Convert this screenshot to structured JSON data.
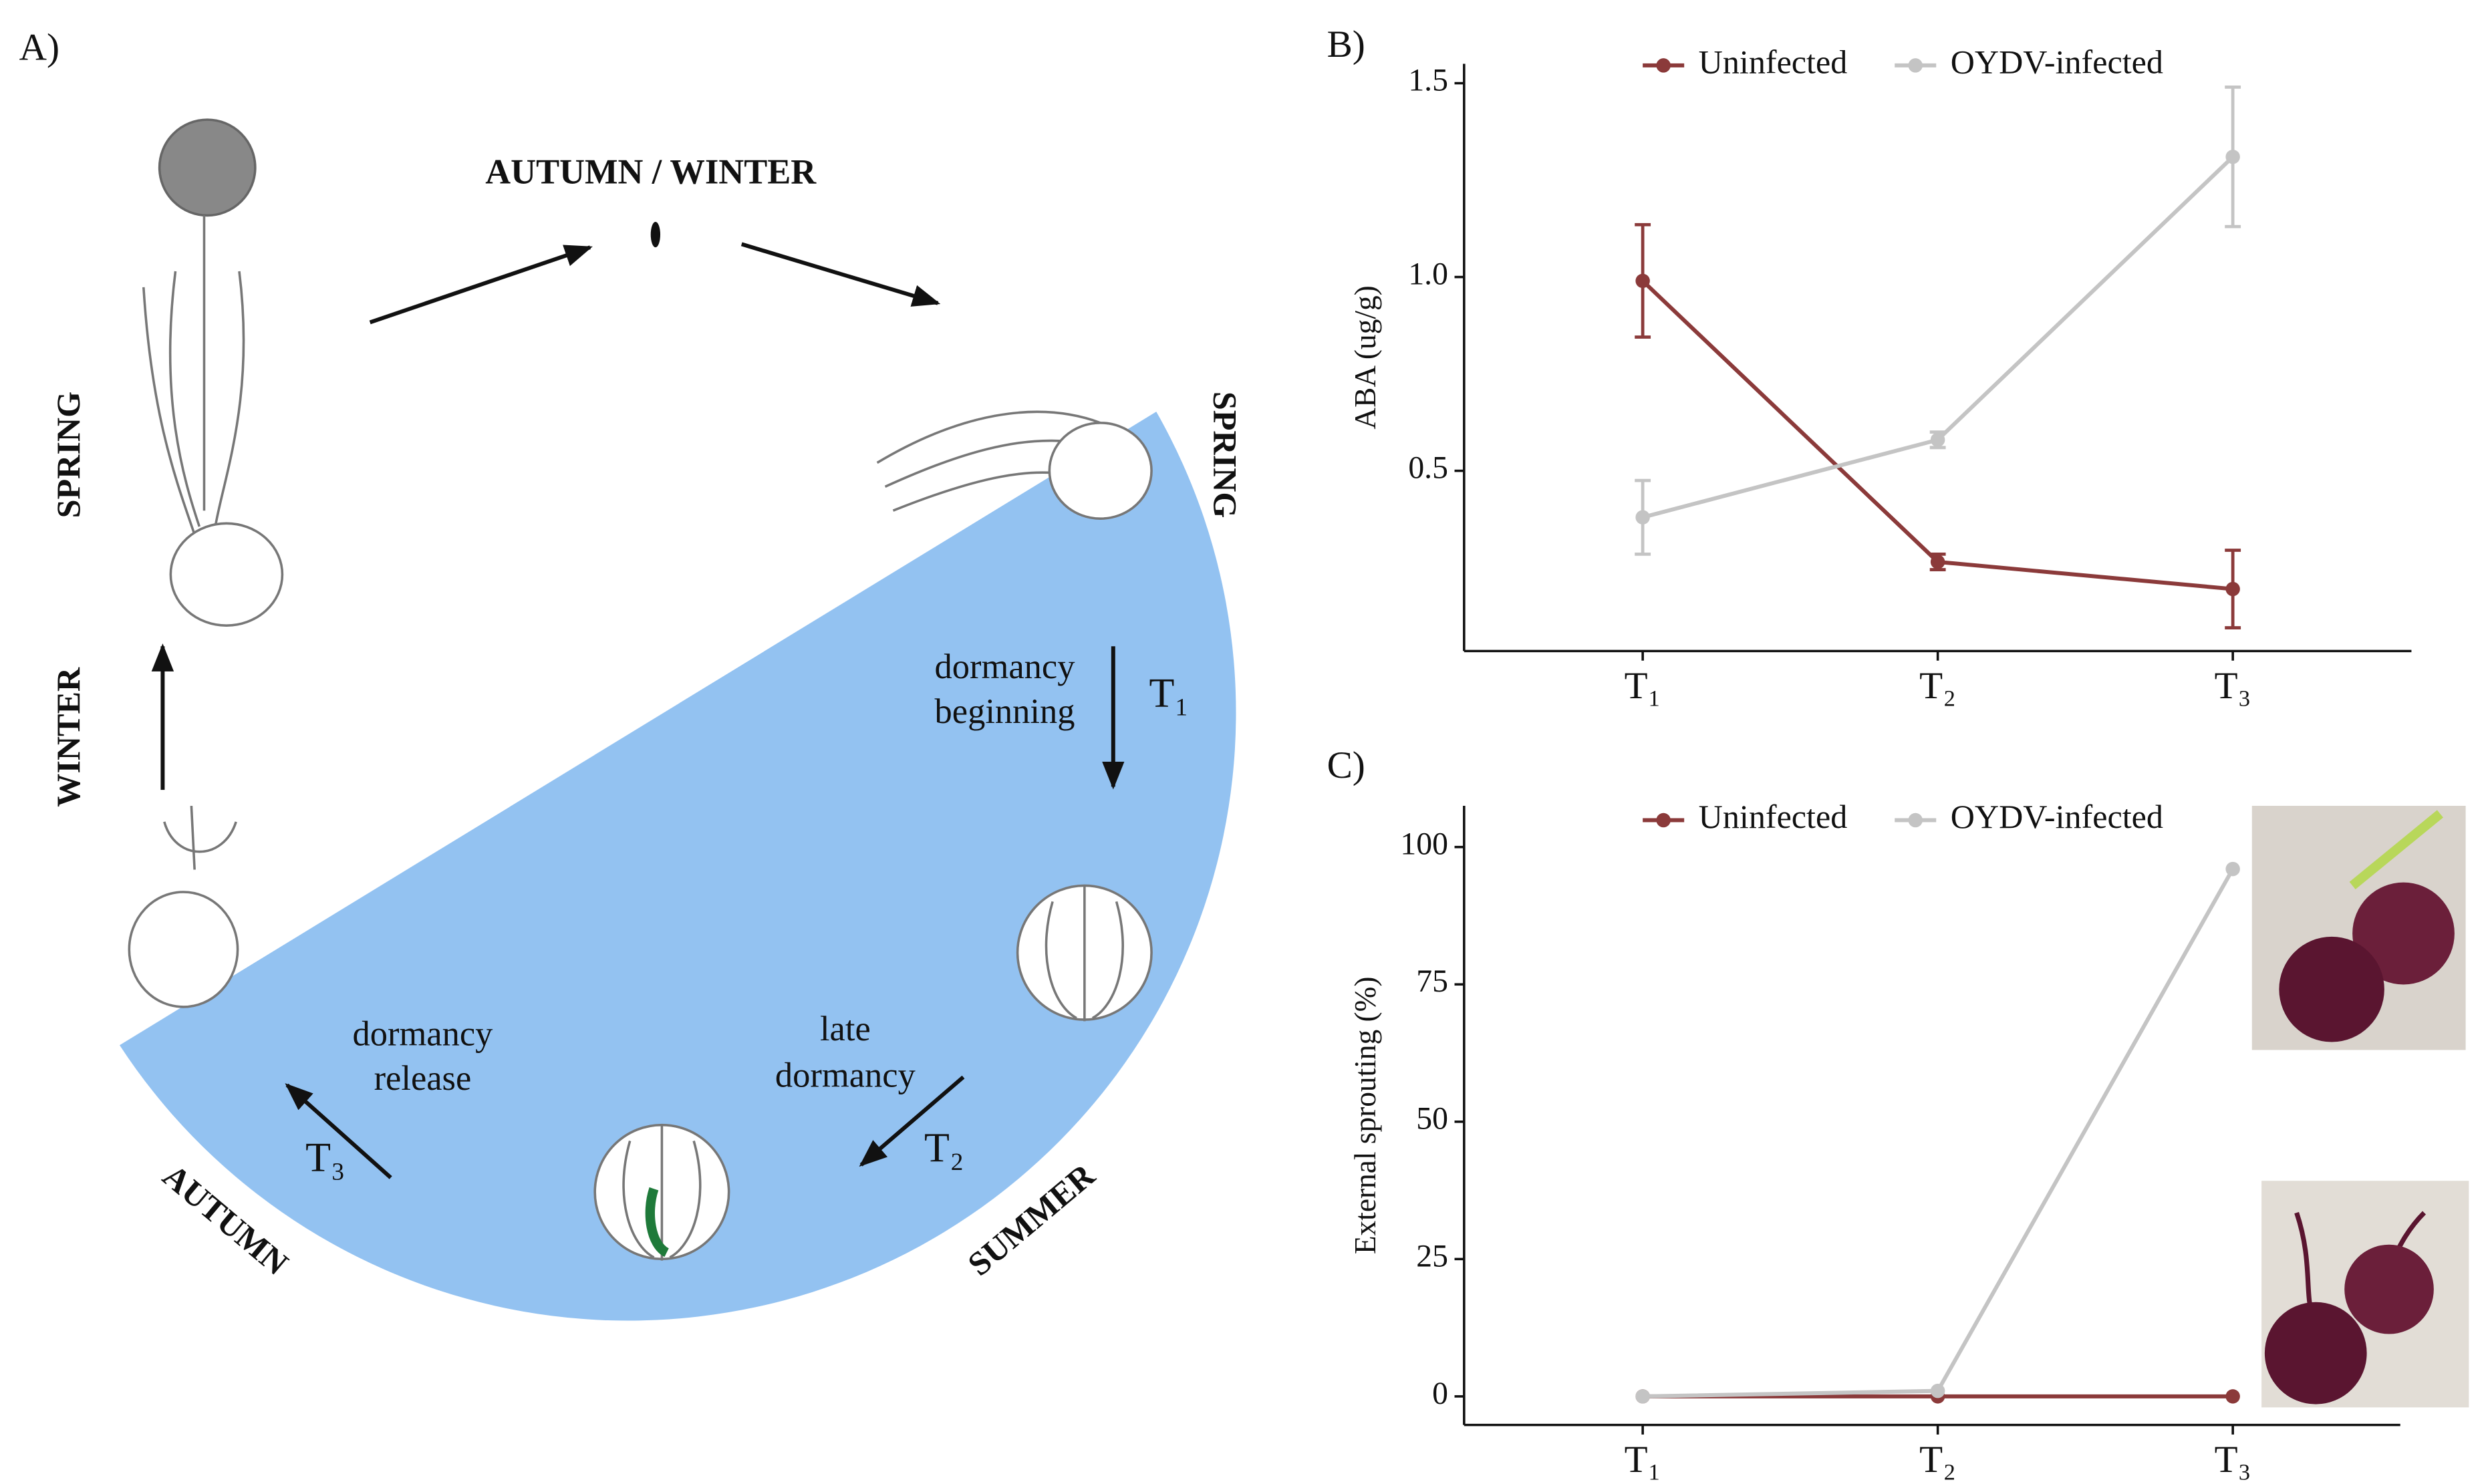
{
  "panel_a": {
    "label": "A)",
    "season_top": "AUTUMN / WINTER",
    "spring_left": "SPRING",
    "winter_left": "WINTER",
    "spring_right": "SPRING",
    "autumn": "AUTUMN",
    "summer": "SUMMER",
    "stage1_line1": "dormancy",
    "stage1_line2": "beginning",
    "stage1_t": "T₁",
    "stage2_line1": "late",
    "stage2_line2": "dormancy",
    "stage2_t": "T₂",
    "stage3_line1": "dormancy",
    "stage3_line2": "release",
    "stage3_t": "T₃"
  },
  "chart_data": [
    {
      "type": "line",
      "panel_label": "B)",
      "ylabel": "ABA (ug/g)",
      "categories": [
        "T₁",
        "T₂",
        "T₃"
      ],
      "series": [
        {
          "name": "Uninfected",
          "color": "#8b3a3a",
          "values": [
            0.99,
            0.265,
            0.195
          ],
          "errors": [
            0.145,
            0.02,
            0.1
          ]
        },
        {
          "name": "OYDV-infected",
          "color": "#c4c4c4",
          "values": [
            0.38,
            0.58,
            1.31
          ],
          "errors": [
            0.095,
            0.02,
            0.18
          ]
        }
      ],
      "ylim": [
        0.035,
        1.55
      ],
      "yticks": [
        0.5,
        {
          "value": 1.0,
          "label": "1.0"
        },
        1.5
      ],
      "legend": "top"
    },
    {
      "type": "line",
      "panel_label": "C)",
      "ylabel": "External sprouting (%)",
      "categories": [
        "T₁",
        "T₂",
        "T₃"
      ],
      "series": [
        {
          "name": "Uninfected",
          "color": "#8b3a3a",
          "values": [
            0,
            0,
            0
          ]
        },
        {
          "name": "OYDV-infected",
          "color": "#c4c4c4",
          "values": [
            0,
            1,
            96
          ]
        }
      ],
      "ylim": [
        -5.2,
        107.5
      ],
      "yticks": [
        0,
        25,
        50,
        75,
        100
      ],
      "legend": "top"
    }
  ]
}
